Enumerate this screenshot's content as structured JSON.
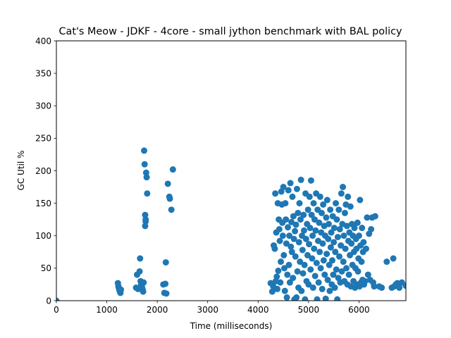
{
  "chart_data": {
    "type": "scatter",
    "title": "Cat's Meow - JDKF - 4core -  small jython benchmark with BAL policy",
    "xlabel": "Time (milliseconds)",
    "ylabel": "GC Util %",
    "xlim": [
      0,
      6930
    ],
    "ylim": [
      0,
      400
    ],
    "xticks": [
      0,
      1000,
      2000,
      3000,
      4000,
      5000,
      6000
    ],
    "yticks": [
      0,
      50,
      100,
      150,
      200,
      250,
      300,
      350,
      400
    ],
    "grid": false,
    "legend": "none",
    "marker_color": "#1f77b4",
    "points": [
      [
        0,
        0
      ],
      [
        1220,
        27
      ],
      [
        1230,
        22
      ],
      [
        1240,
        19
      ],
      [
        1250,
        16
      ],
      [
        1260,
        14
      ],
      [
        1270,
        12
      ],
      [
        1280,
        17
      ],
      [
        1580,
        20
      ],
      [
        1600,
        40
      ],
      [
        1620,
        18
      ],
      [
        1650,
        45
      ],
      [
        1660,
        65
      ],
      [
        1670,
        30
      ],
      [
        1680,
        25
      ],
      [
        1690,
        22
      ],
      [
        1700,
        20
      ],
      [
        1710,
        17
      ],
      [
        1720,
        14
      ],
      [
        1730,
        28
      ],
      [
        1740,
        231
      ],
      [
        1750,
        210
      ],
      [
        1760,
        115
      ],
      [
        1770,
        122
      ],
      [
        1780,
        197
      ],
      [
        1790,
        190
      ],
      [
        1800,
        165
      ],
      [
        1760,
        132
      ],
      [
        1770,
        125
      ],
      [
        2120,
        25
      ],
      [
        2140,
        12
      ],
      [
        2160,
        26
      ],
      [
        2180,
        11
      ],
      [
        2170,
        59
      ],
      [
        2210,
        180
      ],
      [
        2240,
        160
      ],
      [
        2250,
        157
      ],
      [
        2280,
        140
      ],
      [
        2310,
        202
      ],
      [
        4250,
        27
      ],
      [
        4280,
        14
      ],
      [
        4300,
        22
      ],
      [
        4310,
        85
      ],
      [
        4330,
        80
      ],
      [
        4340,
        165
      ],
      [
        4350,
        30
      ],
      [
        4360,
        105
      ],
      [
        4370,
        37
      ],
      [
        4380,
        18
      ],
      [
        4390,
        150
      ],
      [
        4400,
        46
      ],
      [
        4410,
        125
      ],
      [
        4420,
        110
      ],
      [
        4430,
        92
      ],
      [
        4440,
        28
      ],
      [
        4450,
        60
      ],
      [
        4460,
        168
      ],
      [
        4470,
        148
      ],
      [
        4480,
        120
      ],
      [
        4490,
        100
      ],
      [
        4500,
        175
      ],
      [
        4510,
        70
      ],
      [
        4520,
        50
      ],
      [
        4530,
        15
      ],
      [
        4540,
        150
      ],
      [
        4550,
        125
      ],
      [
        4560,
        88
      ],
      [
        4570,
        5
      ],
      [
        4580,
        40
      ],
      [
        4590,
        113
      ],
      [
        4600,
        170
      ],
      [
        4610,
        55
      ],
      [
        4620,
        100
      ],
      [
        4630,
        28
      ],
      [
        4640,
        181
      ],
      [
        4650,
        83
      ],
      [
        4660,
        121
      ],
      [
        4670,
        75
      ],
      [
        4680,
        160
      ],
      [
        4690,
        35
      ],
      [
        4700,
        130
      ],
      [
        4710,
        95
      ],
      [
        4720,
        2
      ],
      [
        4730,
        107
      ],
      [
        4740,
        68
      ],
      [
        4750,
        117
      ],
      [
        4760,
        5
      ],
      [
        4770,
        172
      ],
      [
        4780,
        45
      ],
      [
        4790,
        135
      ],
      [
        4800,
        20
      ],
      [
        4810,
        90
      ],
      [
        4820,
        150
      ],
      [
        4830,
        60
      ],
      [
        4840,
        125
      ],
      [
        4850,
        186
      ],
      [
        4860,
        15
      ],
      [
        4870,
        100
      ],
      [
        4880,
        78
      ],
      [
        4890,
        42
      ],
      [
        4900,
        132
      ],
      [
        4910,
        108
      ],
      [
        4920,
        55
      ],
      [
        4930,
        2
      ],
      [
        4940,
        165
      ],
      [
        4950,
        95
      ],
      [
        4960,
        30
      ],
      [
        4970,
        118
      ],
      [
        4980,
        70
      ],
      [
        4990,
        140
      ],
      [
        5000,
        25
      ],
      [
        5010,
        87
      ],
      [
        5020,
        160
      ],
      [
        5030,
        112
      ],
      [
        5040,
        48
      ],
      [
        5050,
        185
      ],
      [
        5060,
        132
      ],
      [
        5070,
        65
      ],
      [
        5080,
        100
      ],
      [
        5090,
        20
      ],
      [
        5100,
        150
      ],
      [
        5110,
        80
      ],
      [
        5120,
        125
      ],
      [
        5130,
        38
      ],
      [
        5140,
        108
      ],
      [
        5150,
        165
      ],
      [
        5160,
        58
      ],
      [
        5170,
        2
      ],
      [
        5180,
        140
      ],
      [
        5190,
        92
      ],
      [
        5200,
        28
      ],
      [
        5210,
        120
      ],
      [
        5220,
        75
      ],
      [
        5230,
        160
      ],
      [
        5240,
        50
      ],
      [
        5250,
        105
      ],
      [
        5260,
        135
      ],
      [
        5270,
        18
      ],
      [
        5280,
        88
      ],
      [
        5290,
        148
      ],
      [
        5300,
        62
      ],
      [
        5310,
        115
      ],
      [
        5320,
        40
      ],
      [
        5330,
        100
      ],
      [
        5340,
        3
      ],
      [
        5350,
        128
      ],
      [
        5360,
        72
      ],
      [
        5370,
        155
      ],
      [
        5380,
        32
      ],
      [
        5390,
        95
      ],
      [
        5400,
        118
      ],
      [
        5410,
        55
      ],
      [
        5420,
        15
      ],
      [
        5430,
        140
      ],
      [
        5440,
        82
      ],
      [
        5450,
        105
      ],
      [
        5460,
        25
      ],
      [
        5470,
        62
      ],
      [
        5480,
        130
      ],
      [
        5490,
        40
      ],
      [
        5500,
        90
      ],
      [
        5510,
        112
      ],
      [
        5520,
        20
      ],
      [
        5530,
        75
      ],
      [
        5540,
        150
      ],
      [
        5550,
        48
      ],
      [
        5560,
        125
      ],
      [
        5570,
        2
      ],
      [
        5580,
        98
      ],
      [
        5590,
        35
      ],
      [
        5600,
        140
      ],
      [
        5610,
        68
      ],
      [
        5620,
        110
      ],
      [
        5630,
        28
      ],
      [
        5640,
        85
      ],
      [
        5650,
        165
      ],
      [
        5660,
        45
      ],
      [
        5670,
        118
      ],
      [
        5680,
        175
      ],
      [
        5690,
        60
      ],
      [
        5700,
        100
      ],
      [
        5710,
        30
      ],
      [
        5720,
        135
      ],
      [
        5730,
        80
      ],
      [
        5740,
        148
      ],
      [
        5750,
        50
      ],
      [
        5760,
        115
      ],
      [
        5770,
        25
      ],
      [
        5780,
        160
      ],
      [
        5790,
        92
      ],
      [
        5800,
        40
      ],
      [
        5810,
        105
      ],
      [
        5820,
        70
      ],
      [
        5830,
        145
      ],
      [
        5840,
        22
      ],
      [
        5850,
        88
      ],
      [
        5860,
        118
      ],
      [
        5870,
        55
      ],
      [
        5880,
        100
      ],
      [
        5890,
        30
      ],
      [
        5900,
        75
      ],
      [
        5910,
        112
      ],
      [
        5920,
        20
      ],
      [
        5930,
        50
      ],
      [
        5940,
        95
      ],
      [
        5950,
        80
      ],
      [
        5960,
        25
      ],
      [
        5970,
        120
      ],
      [
        5980,
        45
      ],
      [
        5990,
        65
      ],
      [
        6000,
        100
      ],
      [
        6010,
        22
      ],
      [
        6020,
        155
      ],
      [
        6030,
        85
      ],
      [
        6040,
        28
      ],
      [
        6050,
        60
      ],
      [
        6060,
        112
      ],
      [
        6070,
        32
      ],
      [
        6080,
        75
      ],
      [
        6090,
        90
      ],
      [
        6100,
        25
      ],
      [
        6120,
        30
      ],
      [
        6140,
        80
      ],
      [
        6160,
        128
      ],
      [
        6180,
        40
      ],
      [
        6200,
        103
      ],
      [
        6220,
        32
      ],
      [
        6240,
        110
      ],
      [
        6260,
        128
      ],
      [
        6280,
        28
      ],
      [
        6300,
        22
      ],
      [
        6320,
        130
      ],
      [
        6400,
        22
      ],
      [
        6450,
        20
      ],
      [
        6550,
        60
      ],
      [
        6650,
        20
      ],
      [
        6680,
        65
      ],
      [
        6700,
        22
      ],
      [
        6730,
        25
      ],
      [
        6760,
        27
      ],
      [
        6800,
        20
      ],
      [
        6850,
        28
      ],
      [
        6930,
        23
      ]
    ]
  }
}
